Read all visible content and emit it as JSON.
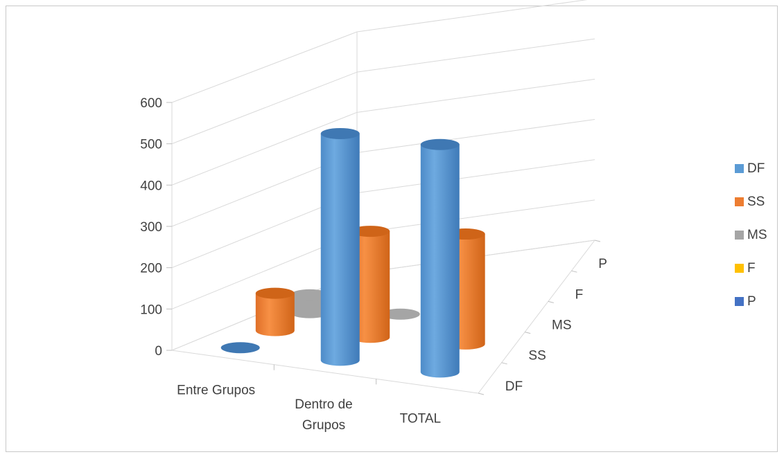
{
  "chart_data": {
    "type": "bar",
    "subtype": "3d-cylinder",
    "title": "",
    "xlabel": "",
    "ylabel": "",
    "ylim": [
      0,
      600
    ],
    "y_ticks": [
      "0",
      "100",
      "200",
      "300",
      "400",
      "500",
      "600"
    ],
    "categories": [
      "Entre Grupos",
      "Dentro de Grupos",
      "TOTAL"
    ],
    "series": [
      {
        "name": "DF",
        "values": [
          2,
          558,
          560
        ]
      },
      {
        "name": "SS",
        "values": [
          95,
          270,
          280
        ]
      },
      {
        "name": "MS",
        "values": [
          47,
          0.5,
          0
        ]
      },
      {
        "name": "F",
        "values": [
          0,
          0,
          0
        ]
      },
      {
        "name": "P",
        "values": [
          0,
          0,
          0
        ]
      }
    ],
    "depth_ticks": [
      "DF",
      "SS",
      "MS",
      "F",
      "P"
    ],
    "legend": {
      "position": "right",
      "items": [
        {
          "label": "DF",
          "color": "#5b9bd5"
        },
        {
          "label": "SS",
          "color": "#ed7d31"
        },
        {
          "label": "MS",
          "color": "#a5a5a5"
        },
        {
          "label": "F",
          "color": "#ffc000"
        },
        {
          "label": "P",
          "color": "#4472c4"
        }
      ]
    },
    "grid": true
  }
}
